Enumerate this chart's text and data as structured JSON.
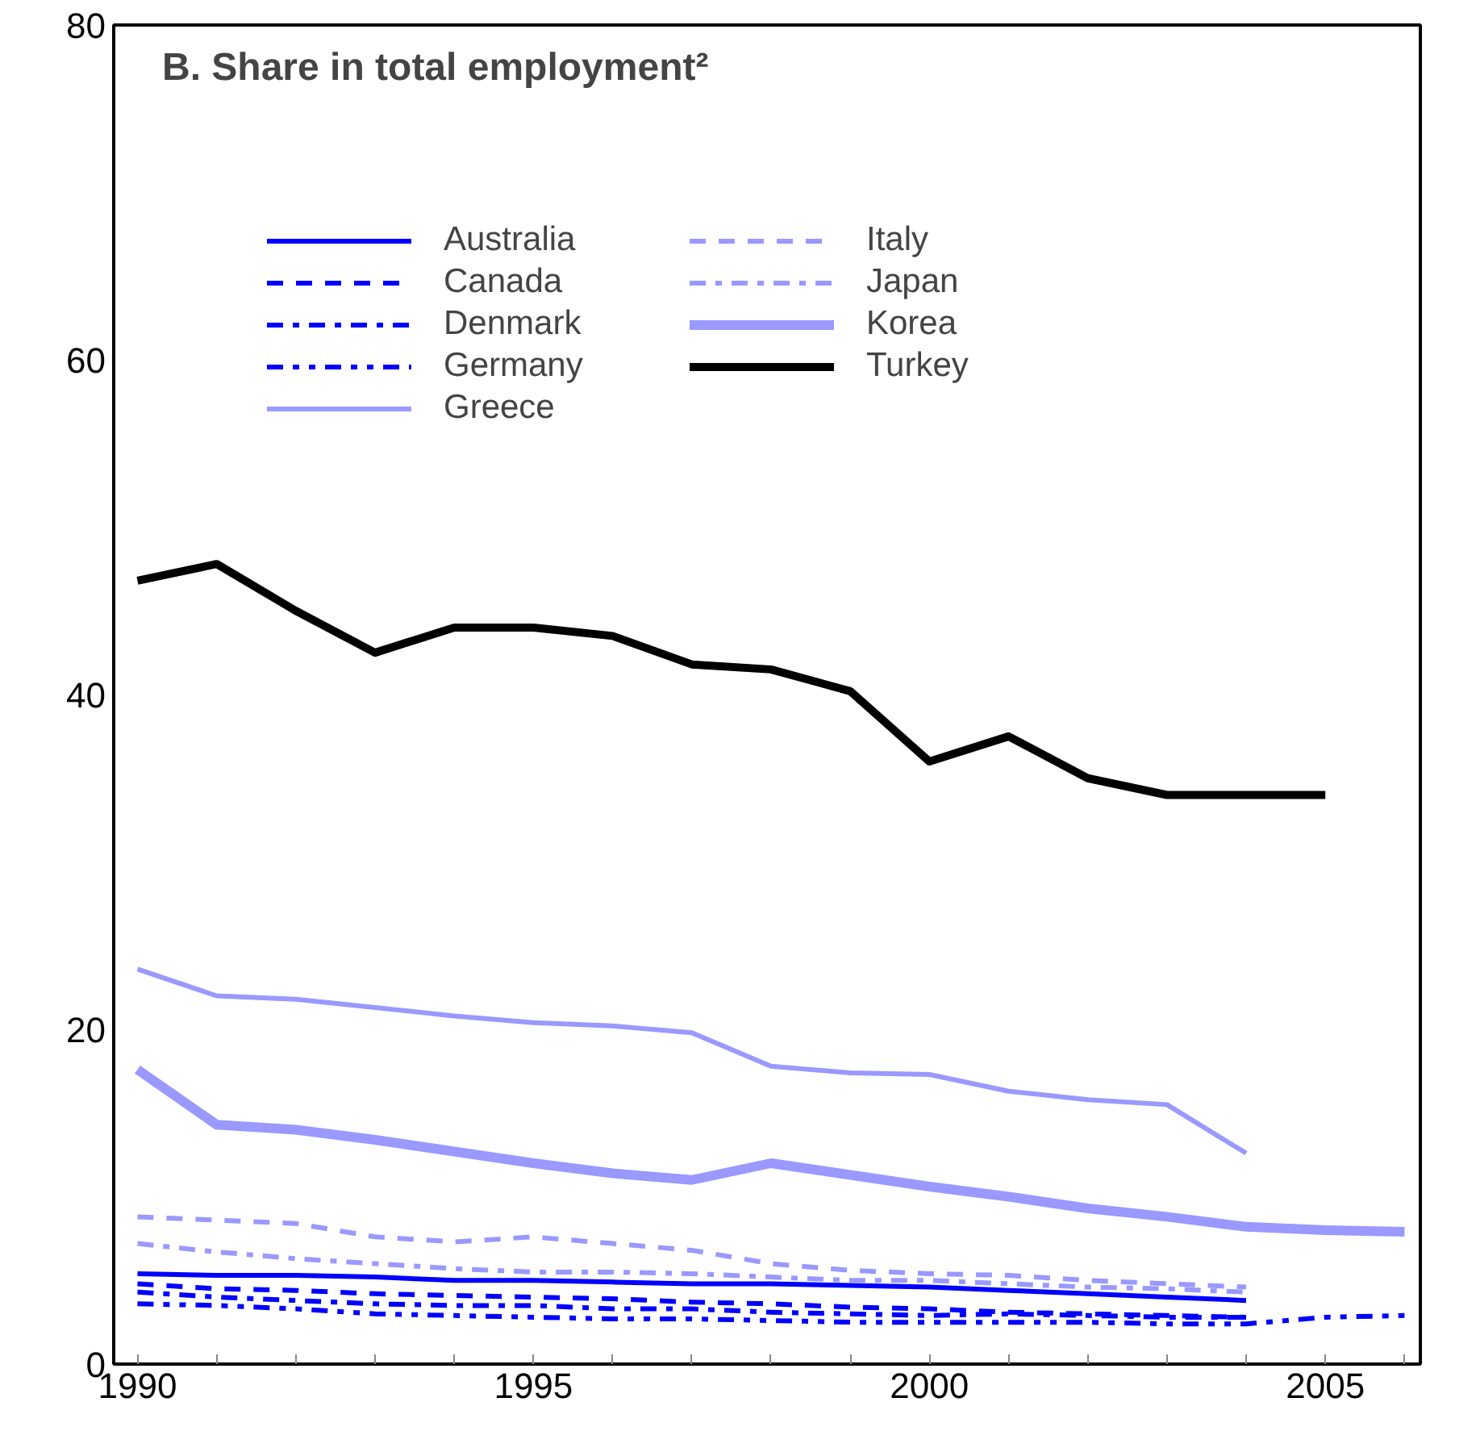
{
  "chart_data": {
    "type": "line",
    "title": "B. Share in total employment²",
    "xlim": [
      1989.7,
      2006.2
    ],
    "xticks": [
      1990,
      1995,
      2000,
      2005
    ],
    "ylim": [
      0,
      80
    ],
    "yticks": [
      0,
      20,
      40,
      60,
      80
    ],
    "grid": false,
    "legend": "top left",
    "series": [
      {
        "name": "Australia",
        "color": "#0000ff",
        "line_style": "solid",
        "x": [
          1990,
          1991,
          1992,
          1993,
          1994,
          1995,
          1996,
          1997,
          1998,
          1999,
          2000,
          2001,
          2002,
          2003,
          2004
        ],
        "values": [
          5.4,
          5.3,
          5.3,
          5.2,
          5.0,
          5.0,
          4.9,
          4.8,
          4.8,
          4.7,
          4.6,
          4.4,
          4.2,
          4.0,
          3.8
        ]
      },
      {
        "name": "Canada",
        "color": "#0000ff",
        "line_style": "dashed",
        "x": [
          1990,
          1991,
          1992,
          1993,
          1994,
          1995,
          1996,
          1997,
          1998,
          1999,
          2000,
          2001,
          2002,
          2003,
          2004
        ],
        "values": [
          4.8,
          4.5,
          4.4,
          4.2,
          4.1,
          4.0,
          3.9,
          3.7,
          3.6,
          3.4,
          3.3,
          3.1,
          3.0,
          2.9,
          2.8
        ]
      },
      {
        "name": "Denmark",
        "color": "#0000ff",
        "line_style": "dashdot",
        "x": [
          1990,
          1991,
          1992,
          1993,
          1994,
          1995,
          1996,
          1997,
          1998,
          1999,
          2000,
          2001,
          2002,
          2003,
          2004
        ],
        "values": [
          4.3,
          4.0,
          3.8,
          3.6,
          3.5,
          3.5,
          3.3,
          3.3,
          3.1,
          3.0,
          2.9,
          3.0,
          2.9,
          2.8,
          2.8
        ]
      },
      {
        "name": "Germany",
        "color": "#0000ff",
        "line_style": "dashdotdot",
        "x": [
          1990,
          1991,
          1992,
          1993,
          1994,
          1995,
          1996,
          1997,
          1998,
          1999,
          2000,
          2001,
          2002,
          2003,
          2004,
          2005,
          2006
        ],
        "values": [
          3.6,
          3.5,
          3.3,
          3.0,
          2.9,
          2.8,
          2.7,
          2.7,
          2.6,
          2.5,
          2.5,
          2.5,
          2.5,
          2.4,
          2.4,
          2.8,
          2.9
        ]
      },
      {
        "name": "Greece",
        "color": "#9999ff",
        "line_style": "solid",
        "x": [
          1990,
          1991,
          1992,
          1993,
          1994,
          1995,
          1996,
          1997,
          1998,
          1999,
          2000,
          2001,
          2002,
          2003,
          2004
        ],
        "values": [
          23.6,
          22.0,
          21.8,
          21.3,
          20.8,
          20.4,
          20.2,
          19.8,
          17.8,
          17.4,
          17.3,
          16.3,
          15.8,
          15.5,
          12.6
        ]
      },
      {
        "name": "Italy",
        "color": "#9999ff",
        "line_style": "dashed",
        "x": [
          1990,
          1991,
          1992,
          1993,
          1994,
          1995,
          1996,
          1997,
          1998,
          1999,
          2000,
          2001,
          2002,
          2003,
          2004
        ],
        "values": [
          8.8,
          8.6,
          8.4,
          7.6,
          7.3,
          7.6,
          7.2,
          6.8,
          6.0,
          5.6,
          5.4,
          5.3,
          5.0,
          4.8,
          4.6
        ]
      },
      {
        "name": "Japan",
        "color": "#9999ff",
        "line_style": "dashdot",
        "x": [
          1990,
          1991,
          1992,
          1993,
          1994,
          1995,
          1996,
          1997,
          1998,
          1999,
          2000,
          2001,
          2002,
          2003,
          2004
        ],
        "values": [
          7.2,
          6.7,
          6.3,
          6.0,
          5.7,
          5.5,
          5.5,
          5.4,
          5.2,
          5.0,
          5.0,
          4.8,
          4.6,
          4.5,
          4.3
        ]
      },
      {
        "name": "Korea",
        "color": "#9999ff",
        "line_style": "solid",
        "x": [
          1990,
          1991,
          1992,
          1993,
          1994,
          1995,
          1996,
          1997,
          1998,
          1999,
          2000,
          2001,
          2002,
          2003,
          2004,
          2005,
          2006
        ],
        "values": [
          17.6,
          14.3,
          14.0,
          13.4,
          12.7,
          12.0,
          11.4,
          11.0,
          12.0,
          11.3,
          10.6,
          10.0,
          9.3,
          8.8,
          8.2,
          8.0,
          7.9
        ]
      },
      {
        "name": "Turkey",
        "color": "#000000",
        "line_style": "solid",
        "x": [
          1990,
          1991,
          1992,
          1993,
          1994,
          1995,
          1996,
          1997,
          1998,
          1999,
          2000,
          2001,
          2002,
          2003,
          2004,
          2005
        ],
        "values": [
          46.8,
          47.8,
          45.0,
          42.5,
          44.0,
          44.0,
          43.5,
          41.8,
          41.5,
          40.2,
          36.0,
          37.5,
          35.0,
          34.0,
          34.0,
          34.0
        ]
      }
    ]
  }
}
